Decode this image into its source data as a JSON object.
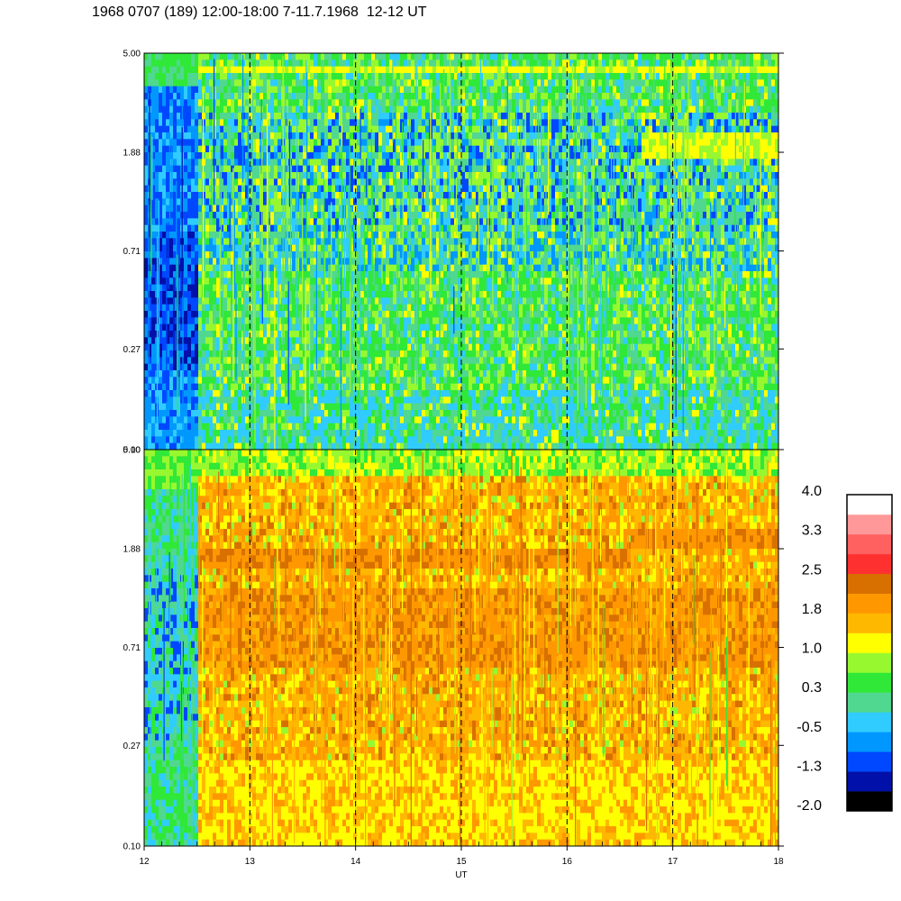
{
  "title": "1968 0707 (189) 12:00-18:00 7-11.7.1968  12-12 UT",
  "chart_data": [
    {
      "type": "heatmap",
      "x_range": [
        12,
        18
      ],
      "y_ticks": [
        "5.00",
        "1.88",
        "0.71",
        "0.27",
        "0.10"
      ],
      "y_scale": "log",
      "ylim": [
        0.1,
        5.0
      ],
      "vertical_dashed_lines_at": [
        13,
        14,
        15,
        16,
        17
      ],
      "description_levels": {
        "12.0-12.5": "blue, dark blue at 0.3-1.0",
        "12.5-18.0": "green to cyan with yellow streaks; yellow band near 4.6 and near 1.9 after 16.7"
      }
    },
    {
      "type": "heatmap",
      "x_range": [
        12,
        18
      ],
      "x_ticks": [
        "12",
        "13",
        "14",
        "15",
        "16",
        "17",
        "18"
      ],
      "xlabel": "UT",
      "y_ticks": [
        "5.00",
        "1.88",
        "0.71",
        "0.27",
        "0.10"
      ],
      "y_scale": "log",
      "ylim": [
        0.1,
        5.0
      ],
      "vertical_dashed_lines_at": [
        13,
        14,
        15,
        16,
        17
      ],
      "description_levels": {
        "12.0-12.5": "green and cyan",
        "12.5-18.0": "orange and yellow, dark orange band near 1.9, yellow at low frequency"
      }
    }
  ],
  "colorbar": {
    "labels": [
      "4.0",
      "3.3",
      "2.5",
      "1.8",
      "1.0",
      "0.3",
      "-0.5",
      "-1.3",
      "-2.0"
    ],
    "colors": [
      "#000000",
      "#0010a8",
      "#0048ff",
      "#0098ff",
      "#30ccff",
      "#50d890",
      "#30e838",
      "#98f830",
      "#ffff00",
      "#ffb800",
      "#ff9800",
      "#d87000",
      "#ff3030",
      "#ff6060",
      "#ff9898",
      "#ffffff"
    ]
  },
  "palette": {
    "black": "#000000",
    "navy": "#0010a8",
    "blue": "#0048ff",
    "azure": "#0098ff",
    "cyan": "#30ccff",
    "teal": "#50d890",
    "green": "#30e838",
    "lime": "#98f830",
    "yellow": "#ffff00",
    "amber": "#ffb800",
    "orange": "#ff9800",
    "brown": "#d87000",
    "red": "#ff3030",
    "pink1": "#ff6060",
    "pink2": "#ff9898",
    "white": "#ffffff"
  }
}
